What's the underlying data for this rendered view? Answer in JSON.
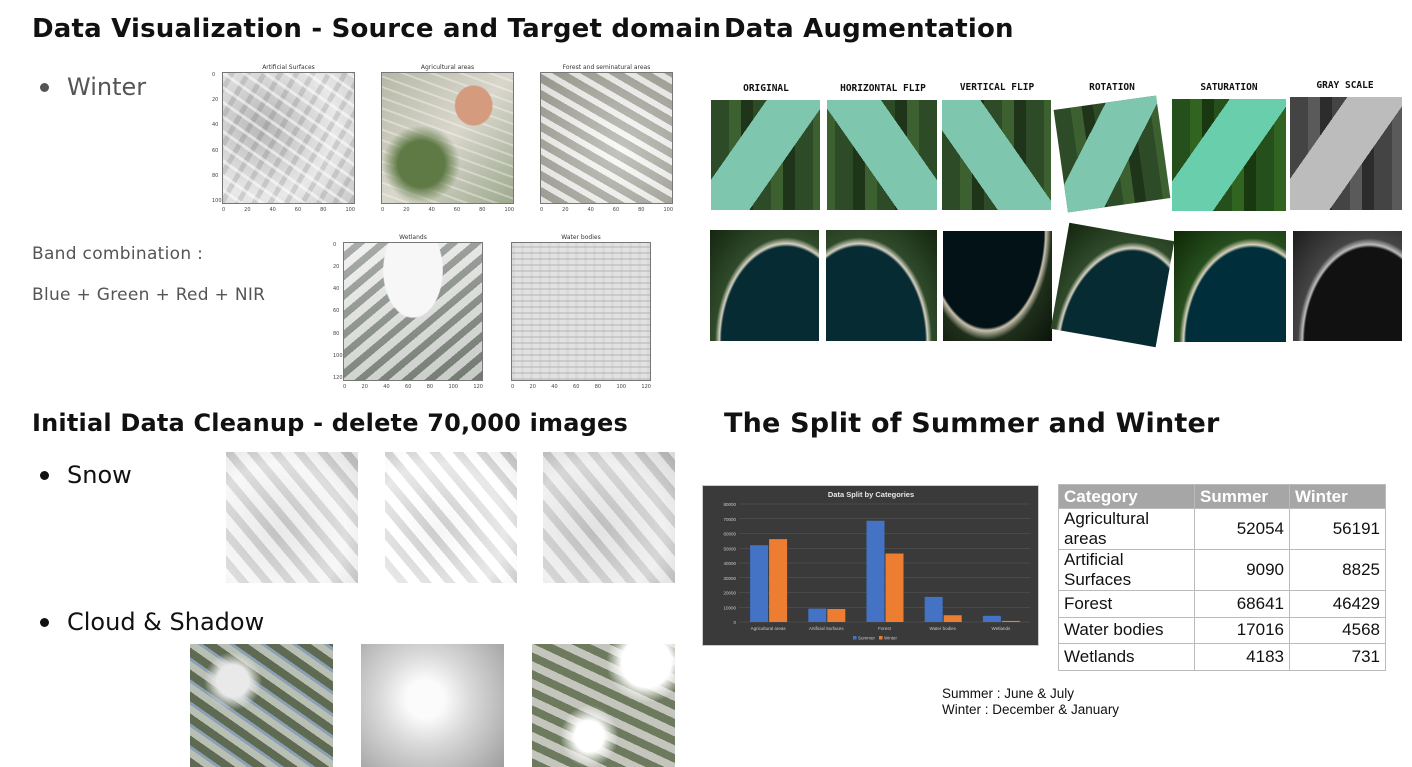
{
  "sections": {
    "top_left": {
      "title": "Data Visualization - Source and Target domain",
      "bullet": "Winter",
      "band_label": "Band combination :",
      "band_value": "Blue + Green + Red + NIR",
      "plots": [
        {
          "title": "Artificial Surfaces",
          "x_ticks": [
            "0",
            "20",
            "40",
            "60",
            "80",
            "100"
          ],
          "y_ticks": [
            "0",
            "20",
            "40",
            "60",
            "80",
            "100"
          ]
        },
        {
          "title": "Agricultural areas",
          "x_ticks": [
            "0",
            "20",
            "40",
            "60",
            "80",
            "100"
          ],
          "y_ticks": []
        },
        {
          "title": "Forest and seminatural areas",
          "x_ticks": [
            "0",
            "20",
            "40",
            "60",
            "80",
            "100"
          ],
          "y_ticks": []
        },
        {
          "title": "Wetlands",
          "x_ticks": [
            "0",
            "20",
            "40",
            "60",
            "80",
            "100",
            "120"
          ],
          "y_ticks": [
            "0",
            "20",
            "40",
            "60",
            "80",
            "100",
            "120"
          ]
        },
        {
          "title": "Water bodies",
          "x_ticks": [
            "0",
            "20",
            "40",
            "60",
            "80",
            "100",
            "120"
          ],
          "y_ticks": []
        }
      ]
    },
    "top_right": {
      "title": "Data Augmentation",
      "labels": [
        "ORIGINAL",
        "HORIZONTAL FLIP",
        "VERTICAL FLIP",
        "ROTATION",
        "SATURATION",
        "GRAY SCALE"
      ]
    },
    "bottom_left": {
      "title": "Initial Data Cleanup - delete 70,000 images",
      "bullet_snow": "Snow",
      "bullet_cloud": "Cloud & Shadow"
    },
    "bottom_right": {
      "title": "The Split of Summer and Winter",
      "note_line1": "Summer : June & July",
      "note_line2": "Winter : December & January"
    }
  },
  "table": {
    "headers": [
      "Category",
      "Summer",
      "Winter"
    ],
    "rows": [
      {
        "category": "Agricultural areas",
        "summer": "52054",
        "winter": "56191"
      },
      {
        "category": "Artificial Surfaces",
        "summer": "9090",
        "winter": "8825"
      },
      {
        "category": "Forest",
        "summer": "68641",
        "winter": "46429"
      },
      {
        "category": "Water bodies",
        "summer": "17016",
        "winter": "4568"
      },
      {
        "category": "Wetlands",
        "summer": "4183",
        "winter": "731"
      }
    ]
  },
  "chart_data": {
    "type": "bar",
    "title": "Data Split by Categories",
    "categories": [
      "Agricultural areas",
      "Artificial Surfaces",
      "Forest",
      "Water bodies",
      "Wetlands"
    ],
    "series": [
      {
        "name": "Summer",
        "values": [
          52054,
          9090,
          68641,
          17016,
          4183
        ],
        "color": "#4472c4"
      },
      {
        "name": "Winter",
        "values": [
          56191,
          8825,
          46429,
          4568,
          731
        ],
        "color": "#ed7d31"
      }
    ],
    "y_ticks": [
      "0",
      "10000",
      "20000",
      "30000",
      "40000",
      "50000",
      "60000",
      "70000",
      "80000"
    ],
    "ylim": [
      0,
      80000
    ],
    "legend_position": "bottom",
    "background": "#3a3a3a"
  }
}
